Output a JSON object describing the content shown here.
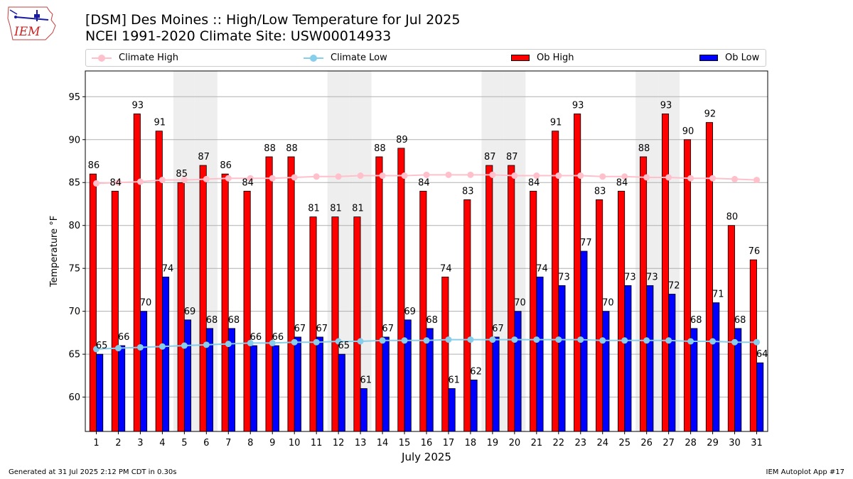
{
  "header": {
    "title_line1": "[DSM] Des Moines :: High/Low Temperature for Jul 2025",
    "title_line2": "NCEI 1991-2020 Climate Site: USW00014933"
  },
  "logo": {
    "text": "IEM"
  },
  "legend": {
    "items": [
      {
        "label": "Climate High",
        "kind": "line",
        "color": "#ffc0cb"
      },
      {
        "label": "Climate Low",
        "kind": "line",
        "color": "#87ceeb"
      },
      {
        "label": "Ob High",
        "kind": "bar",
        "color": "#ff0000"
      },
      {
        "label": "Ob Low",
        "kind": "bar",
        "color": "#0000ff"
      }
    ]
  },
  "footer": {
    "left": "Generated at 31 Jul 2025 2:12 PM CDT in 0.30s",
    "right": "IEM Autoplot App #17"
  },
  "chart_data": {
    "type": "bar",
    "xlabel": "July 2025",
    "ylabel": "Temperature °F",
    "ylim": [
      56,
      98
    ],
    "yticks": [
      60,
      65,
      70,
      75,
      80,
      85,
      90,
      95
    ],
    "grid": true,
    "legend_position": "top",
    "categories": [
      "1",
      "2",
      "3",
      "4",
      "5",
      "6",
      "7",
      "8",
      "9",
      "10",
      "11",
      "12",
      "13",
      "14",
      "15",
      "16",
      "17",
      "18",
      "19",
      "20",
      "21",
      "22",
      "23",
      "24",
      "25",
      "26",
      "27",
      "28",
      "29",
      "30",
      "31"
    ],
    "weekend_shading_days": [
      5,
      6,
      12,
      13,
      19,
      20,
      26,
      27
    ],
    "shade_color": "#eeeeee",
    "series": [
      {
        "name": "Ob High",
        "kind": "bar",
        "color": "#ff0000",
        "values": [
          86,
          84,
          93,
          91,
          85,
          87,
          86,
          84,
          88,
          88,
          81,
          81,
          81,
          88,
          89,
          84,
          74,
          83,
          87,
          87,
          84,
          91,
          93,
          83,
          84,
          88,
          93,
          90,
          92,
          80,
          76
        ]
      },
      {
        "name": "Ob Low",
        "kind": "bar",
        "color": "#0000ff",
        "values": [
          65,
          66,
          70,
          74,
          69,
          68,
          68,
          66,
          66,
          67,
          67,
          65,
          61,
          67,
          69,
          68,
          61,
          62,
          67,
          70,
          74,
          73,
          77,
          70,
          73,
          73,
          72,
          68,
          71,
          68,
          64
        ]
      },
      {
        "name": "Climate High",
        "kind": "line",
        "color": "#ffc0cb",
        "values": [
          84.9,
          85.0,
          85.1,
          85.3,
          85.3,
          85.4,
          85.5,
          85.5,
          85.5,
          85.6,
          85.7,
          85.7,
          85.8,
          85.8,
          85.8,
          85.9,
          85.9,
          85.9,
          85.9,
          85.8,
          85.8,
          85.8,
          85.8,
          85.7,
          85.7,
          85.6,
          85.6,
          85.5,
          85.5,
          85.4,
          85.3
        ]
      },
      {
        "name": "Climate Low",
        "kind": "line",
        "color": "#87ceeb",
        "values": [
          65.6,
          65.7,
          65.8,
          65.9,
          66.0,
          66.1,
          66.2,
          66.3,
          66.3,
          66.4,
          66.4,
          66.5,
          66.5,
          66.6,
          66.6,
          66.6,
          66.7,
          66.7,
          66.7,
          66.7,
          66.7,
          66.7,
          66.7,
          66.6,
          66.6,
          66.6,
          66.6,
          66.5,
          66.5,
          66.4,
          66.4
        ]
      }
    ]
  }
}
